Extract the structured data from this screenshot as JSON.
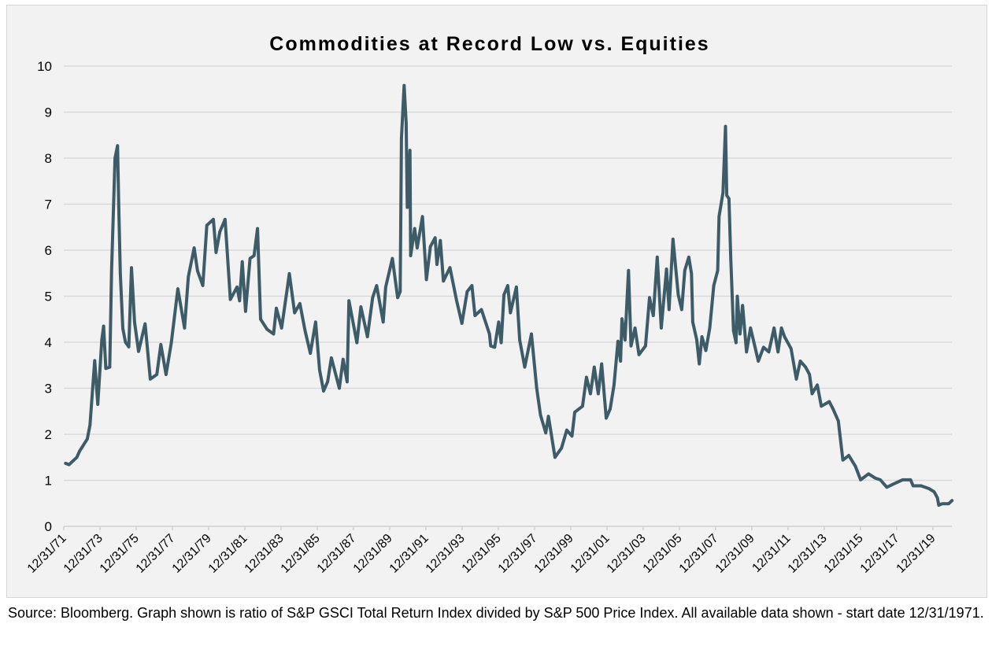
{
  "chart_data": {
    "type": "line",
    "title": "Commodities at Record Low vs. Equities",
    "xlabel": "",
    "ylabel": "",
    "ylim": [
      0,
      10
    ],
    "xlim": [
      1972.0,
      2021.05
    ],
    "yticks": [
      "0",
      "1",
      "2",
      "3",
      "4",
      "5",
      "6",
      "7",
      "8",
      "9",
      "10"
    ],
    "xticks": [
      {
        "label": "12/31/71",
        "x": 1972
      },
      {
        "label": "12/31/73",
        "x": 1974
      },
      {
        "label": "12/31/75",
        "x": 1976
      },
      {
        "label": "12/31/77",
        "x": 1978
      },
      {
        "label": "12/31/79",
        "x": 1980
      },
      {
        "label": "12/31/81",
        "x": 1982
      },
      {
        "label": "12/31/83",
        "x": 1984
      },
      {
        "label": "12/31/85",
        "x": 1986
      },
      {
        "label": "12/31/87",
        "x": 1988
      },
      {
        "label": "12/31/89",
        "x": 1990
      },
      {
        "label": "12/31/91",
        "x": 1992
      },
      {
        "label": "12/31/93",
        "x": 1994
      },
      {
        "label": "12/31/95",
        "x": 1996
      },
      {
        "label": "12/31/97",
        "x": 1998
      },
      {
        "label": "12/31/99",
        "x": 2000
      },
      {
        "label": "12/31/01",
        "x": 2002
      },
      {
        "label": "12/31/03",
        "x": 2004
      },
      {
        "label": "12/31/05",
        "x": 2006
      },
      {
        "label": "12/31/07",
        "x": 2008
      },
      {
        "label": "12/31/09",
        "x": 2010
      },
      {
        "label": "12/31/11",
        "x": 2012
      },
      {
        "label": "12/31/13",
        "x": 2014
      },
      {
        "label": "12/31/15",
        "x": 2016
      },
      {
        "label": "12/31/17",
        "x": 2018
      },
      {
        "label": "12/31/19",
        "x": 2020
      }
    ],
    "grid": true,
    "legend": "none",
    "line_color": "#3e5b68",
    "series": [
      {
        "points": [
          [
            1972.1,
            1.37
          ],
          [
            1972.29,
            1.34
          ],
          [
            1972.72,
            1.5
          ],
          [
            1972.87,
            1.63
          ],
          [
            1973.3,
            1.9
          ],
          [
            1973.45,
            2.2
          ],
          [
            1973.52,
            2.6
          ],
          [
            1973.71,
            3.6
          ],
          [
            1973.88,
            2.65
          ],
          [
            1974.1,
            4.05
          ],
          [
            1974.2,
            4.35
          ],
          [
            1974.32,
            3.43
          ],
          [
            1974.54,
            3.46
          ],
          [
            1974.64,
            5.55
          ],
          [
            1974.83,
            8.0
          ],
          [
            1974.97,
            8.27
          ],
          [
            1975.04,
            6.9
          ],
          [
            1975.12,
            5.5
          ],
          [
            1975.26,
            4.3
          ],
          [
            1975.41,
            4.0
          ],
          [
            1975.59,
            3.9
          ],
          [
            1975.74,
            5.62
          ],
          [
            1975.91,
            4.44
          ],
          [
            1976.13,
            3.8
          ],
          [
            1976.49,
            4.4
          ],
          [
            1976.78,
            3.2
          ],
          [
            1977.14,
            3.3
          ],
          [
            1977.36,
            3.95
          ],
          [
            1977.65,
            3.3
          ],
          [
            1977.94,
            3.99
          ],
          [
            1978.3,
            5.16
          ],
          [
            1978.67,
            4.31
          ],
          [
            1978.88,
            5.42
          ],
          [
            1979.2,
            6.05
          ],
          [
            1979.39,
            5.55
          ],
          [
            1979.68,
            5.23
          ],
          [
            1979.9,
            6.54
          ],
          [
            1980.26,
            6.67
          ],
          [
            1980.41,
            5.95
          ],
          [
            1980.62,
            6.4
          ],
          [
            1980.91,
            6.67
          ],
          [
            1981.2,
            4.93
          ],
          [
            1981.57,
            5.2
          ],
          [
            1981.71,
            4.9
          ],
          [
            1981.86,
            5.75
          ],
          [
            1982.04,
            4.67
          ],
          [
            1982.29,
            5.82
          ],
          [
            1982.51,
            5.88
          ],
          [
            1982.7,
            6.47
          ],
          [
            1982.87,
            4.5
          ],
          [
            1983.23,
            4.28
          ],
          [
            1983.59,
            4.18
          ],
          [
            1983.74,
            4.74
          ],
          [
            1984.03,
            4.31
          ],
          [
            1984.32,
            5.1
          ],
          [
            1984.46,
            5.49
          ],
          [
            1984.75,
            4.64
          ],
          [
            1985.04,
            4.84
          ],
          [
            1985.33,
            4.25
          ],
          [
            1985.62,
            3.76
          ],
          [
            1985.91,
            4.44
          ],
          [
            1986.13,
            3.4
          ],
          [
            1986.35,
            2.94
          ],
          [
            1986.57,
            3.14
          ],
          [
            1986.78,
            3.66
          ],
          [
            1987.22,
            3.0
          ],
          [
            1987.43,
            3.63
          ],
          [
            1987.65,
            3.14
          ],
          [
            1987.75,
            4.9
          ],
          [
            1988.19,
            3.99
          ],
          [
            1988.41,
            4.77
          ],
          [
            1988.77,
            4.12
          ],
          [
            1989.06,
            4.97
          ],
          [
            1989.28,
            5.23
          ],
          [
            1989.64,
            4.44
          ],
          [
            1989.78,
            5.2
          ],
          [
            1990.15,
            5.82
          ],
          [
            1990.44,
            4.97
          ],
          [
            1990.58,
            5.1
          ],
          [
            1990.65,
            8.43
          ],
          [
            1990.8,
            9.58
          ],
          [
            1990.91,
            8.76
          ],
          [
            1990.97,
            6.93
          ],
          [
            1991.12,
            8.17
          ],
          [
            1991.16,
            5.88
          ],
          [
            1991.38,
            6.47
          ],
          [
            1991.52,
            6.05
          ],
          [
            1991.81,
            6.73
          ],
          [
            1992.03,
            5.36
          ],
          [
            1992.25,
            6.08
          ],
          [
            1992.51,
            6.27
          ],
          [
            1992.61,
            5.69
          ],
          [
            1992.8,
            6.21
          ],
          [
            1992.97,
            5.33
          ],
          [
            1993.33,
            5.62
          ],
          [
            1993.7,
            4.9
          ],
          [
            1993.99,
            4.41
          ],
          [
            1994.28,
            5.1
          ],
          [
            1994.54,
            5.23
          ],
          [
            1994.71,
            4.58
          ],
          [
            1995.07,
            4.71
          ],
          [
            1995.51,
            4.18
          ],
          [
            1995.58,
            3.92
          ],
          [
            1995.8,
            3.89
          ],
          [
            1996.02,
            4.44
          ],
          [
            1996.16,
            3.99
          ],
          [
            1996.31,
            5.03
          ],
          [
            1996.52,
            5.23
          ],
          [
            1996.67,
            4.64
          ],
          [
            1997.0,
            5.2
          ],
          [
            1997.18,
            4.05
          ],
          [
            1997.46,
            3.46
          ],
          [
            1997.83,
            4.18
          ],
          [
            1998.12,
            3.0
          ],
          [
            1998.33,
            2.42
          ],
          [
            1998.62,
            2.03
          ],
          [
            1998.77,
            2.39
          ],
          [
            1999.13,
            1.5
          ],
          [
            1999.49,
            1.7
          ],
          [
            1999.78,
            2.09
          ],
          [
            2000.07,
            1.96
          ],
          [
            2000.22,
            2.48
          ],
          [
            2000.65,
            2.61
          ],
          [
            2000.87,
            3.24
          ],
          [
            2001.09,
            2.88
          ],
          [
            2001.3,
            3.46
          ],
          [
            2001.52,
            2.88
          ],
          [
            2001.71,
            3.53
          ],
          [
            2001.96,
            2.35
          ],
          [
            2002.18,
            2.55
          ],
          [
            2002.39,
            3.07
          ],
          [
            2002.61,
            4.02
          ],
          [
            2002.75,
            3.59
          ],
          [
            2002.83,
            4.51
          ],
          [
            2003.0,
            4.05
          ],
          [
            2003.19,
            5.56
          ],
          [
            2003.33,
            3.92
          ],
          [
            2003.55,
            4.31
          ],
          [
            2003.77,
            3.73
          ],
          [
            2004.13,
            3.92
          ],
          [
            2004.35,
            4.97
          ],
          [
            2004.56,
            4.58
          ],
          [
            2004.78,
            5.85
          ],
          [
            2005.0,
            4.31
          ],
          [
            2005.29,
            5.59
          ],
          [
            2005.43,
            4.71
          ],
          [
            2005.65,
            6.24
          ],
          [
            2005.94,
            5.03
          ],
          [
            2006.13,
            4.71
          ],
          [
            2006.3,
            5.56
          ],
          [
            2006.52,
            5.85
          ],
          [
            2006.67,
            5.49
          ],
          [
            2006.74,
            4.44
          ],
          [
            2006.96,
            4.05
          ],
          [
            2007.1,
            3.53
          ],
          [
            2007.25,
            4.12
          ],
          [
            2007.46,
            3.82
          ],
          [
            2007.68,
            4.31
          ],
          [
            2007.9,
            5.23
          ],
          [
            2008.12,
            5.56
          ],
          [
            2008.19,
            6.73
          ],
          [
            2008.41,
            7.25
          ],
          [
            2008.55,
            8.69
          ],
          [
            2008.62,
            7.19
          ],
          [
            2008.74,
            7.12
          ],
          [
            2008.84,
            5.82
          ],
          [
            2008.99,
            4.25
          ],
          [
            2009.13,
            3.99
          ],
          [
            2009.2,
            5.0
          ],
          [
            2009.35,
            4.18
          ],
          [
            2009.49,
            4.8
          ],
          [
            2009.71,
            3.79
          ],
          [
            2009.93,
            4.31
          ],
          [
            2010.36,
            3.59
          ],
          [
            2010.65,
            3.89
          ],
          [
            2010.94,
            3.79
          ],
          [
            2011.23,
            4.31
          ],
          [
            2011.45,
            3.79
          ],
          [
            2011.64,
            4.31
          ],
          [
            2011.81,
            4.12
          ],
          [
            2012.17,
            3.86
          ],
          [
            2012.46,
            3.2
          ],
          [
            2012.68,
            3.59
          ],
          [
            2012.97,
            3.46
          ],
          [
            2013.19,
            3.3
          ],
          [
            2013.33,
            2.88
          ],
          [
            2013.62,
            3.07
          ],
          [
            2013.84,
            2.61
          ],
          [
            2014.28,
            2.71
          ],
          [
            2014.49,
            2.55
          ],
          [
            2014.78,
            2.29
          ],
          [
            2015.03,
            1.44
          ],
          [
            2015.36,
            1.54
          ],
          [
            2015.72,
            1.31
          ],
          [
            2016.01,
            1.01
          ],
          [
            2016.45,
            1.14
          ],
          [
            2016.81,
            1.05
          ],
          [
            2017.1,
            1.01
          ],
          [
            2017.46,
            0.85
          ],
          [
            2017.83,
            0.92
          ],
          [
            2018.33,
            1.01
          ],
          [
            2018.77,
            1.01
          ],
          [
            2018.91,
            0.88
          ],
          [
            2019.35,
            0.88
          ],
          [
            2019.78,
            0.82
          ],
          [
            2020.07,
            0.75
          ],
          [
            2020.25,
            0.62
          ],
          [
            2020.33,
            0.46
          ],
          [
            2020.51,
            0.49
          ],
          [
            2020.87,
            0.49
          ],
          [
            2021.06,
            0.56
          ]
        ]
      }
    ]
  },
  "source_note": "Source: Bloomberg. Graph shown is ratio of S&P GSCI Total Return Index divided by S&P 500 Price Index.  All available data shown - start date 12/31/1971."
}
